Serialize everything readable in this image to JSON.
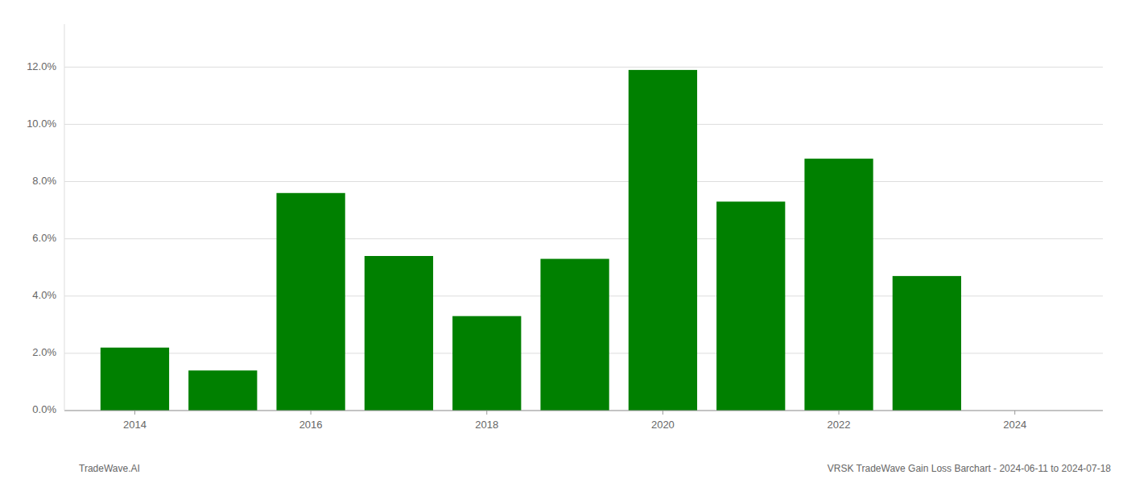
{
  "chart_data": {
    "type": "bar",
    "x": [
      2014,
      2015,
      2016,
      2017,
      2018,
      2019,
      2020,
      2021,
      2022,
      2023
    ],
    "values": [
      0.022,
      0.014,
      0.076,
      0.054,
      0.033,
      0.053,
      0.119,
      0.073,
      0.088,
      0.047
    ],
    "color": "#008000",
    "xlim": [
      2013.2,
      2025.0
    ],
    "xticks": [
      2014,
      2016,
      2018,
      2020,
      2022,
      2024
    ],
    "ylim": [
      0,
      0.135
    ],
    "yticks": [
      {
        "value": 0.0,
        "label": "0.0%"
      },
      {
        "value": 0.02,
        "label": "2.0%"
      },
      {
        "value": 0.04,
        "label": "4.0%"
      },
      {
        "value": 0.06,
        "label": "6.0%"
      },
      {
        "value": 0.08,
        "label": "8.0%"
      },
      {
        "value": 0.1,
        "label": "10.0%"
      },
      {
        "value": 0.12,
        "label": "12.0%"
      }
    ],
    "grid": true,
    "annotations": [
      "TradeWave.AI",
      "VRSK TradeWave Gain Loss Barchart - 2024-06-11 to 2024-07-18"
    ]
  }
}
